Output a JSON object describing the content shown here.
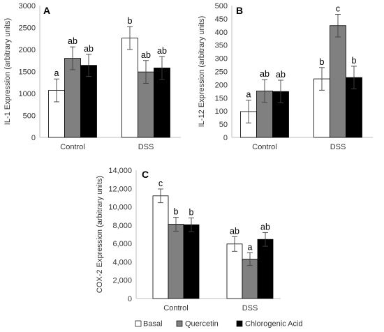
{
  "legend": [
    {
      "label": "Basal",
      "color": "#ffffff"
    },
    {
      "label": "Quercetin",
      "color": "#808080"
    },
    {
      "label": "Chlorogenic Acid",
      "color": "#000000"
    }
  ],
  "chart_data": [
    {
      "type": "bar",
      "panel": "A",
      "ylabel": "IL-1 Expression (arbitrary units)",
      "xlabel": "",
      "ylim": [
        0,
        3000
      ],
      "yticks": [
        0,
        500,
        1000,
        1500,
        2000,
        2500,
        3000
      ],
      "ytick_labels": [
        "0",
        "500",
        "1000",
        "1500",
        "2000",
        "2500",
        "3000"
      ],
      "categories": [
        "Control",
        "DSS"
      ],
      "series": [
        {
          "name": "Basal",
          "color": "#ffffff",
          "values": [
            1070,
            2260
          ],
          "errors": [
            260,
            260
          ],
          "letters": [
            "a",
            "b"
          ]
        },
        {
          "name": "Quercetin",
          "color": "#808080",
          "values": [
            1800,
            1490
          ],
          "errors": [
            260,
            260
          ],
          "letters": [
            "ab",
            "ab"
          ]
        },
        {
          "name": "Chlorogenic Acid",
          "color": "#000000",
          "values": [
            1640,
            1580
          ],
          "errors": [
            250,
            260
          ],
          "letters": [
            "ab",
            "ab"
          ]
        }
      ],
      "grid": false
    },
    {
      "type": "bar",
      "panel": "B",
      "ylabel": "IL-12 Expression (arbitrary units)",
      "xlabel": "",
      "ylim": [
        0,
        500
      ],
      "yticks": [
        0,
        50,
        100,
        150,
        200,
        250,
        300,
        350,
        400,
        450,
        500
      ],
      "ytick_labels": [
        "0",
        "50",
        "100",
        "150",
        "200",
        "250",
        "300",
        "350",
        "400",
        "450",
        "500"
      ],
      "categories": [
        "Control",
        "DSS"
      ],
      "series": [
        {
          "name": "Basal",
          "color": "#ffffff",
          "values": [
            98,
            222
          ],
          "errors": [
            43,
            43
          ],
          "letters": [
            "a",
            "b"
          ]
        },
        {
          "name": "Quercetin",
          "color": "#808080",
          "values": [
            176,
            424
          ],
          "errors": [
            43,
            43
          ],
          "letters": [
            "ab",
            "c"
          ]
        },
        {
          "name": "Chlorogenic Acid",
          "color": "#000000",
          "values": [
            174,
            227
          ],
          "errors": [
            43,
            43
          ],
          "letters": [
            "ab",
            "b"
          ]
        }
      ],
      "grid": false
    },
    {
      "type": "bar",
      "panel": "C",
      "ylabel": "COX-2 Expression (arbitrary units)",
      "xlabel": "",
      "ylim": [
        0,
        14000
      ],
      "yticks": [
        0,
        2000,
        4000,
        6000,
        8000,
        10000,
        12000,
        14000
      ],
      "ytick_labels": [
        "0",
        "2,000",
        "4,000",
        "6,000",
        "8,000",
        "10,000",
        "12,000",
        "14,000"
      ],
      "categories": [
        "Control",
        "DSS"
      ],
      "series": [
        {
          "name": "Basal",
          "color": "#ffffff",
          "values": [
            11200,
            5950
          ],
          "errors": [
            750,
            800
          ],
          "letters": [
            "c",
            "ab"
          ]
        },
        {
          "name": "Quercetin",
          "color": "#808080",
          "values": [
            8100,
            4300
          ],
          "errors": [
            750,
            700
          ],
          "letters": [
            "b",
            "a"
          ]
        },
        {
          "name": "Chlorogenic Acid",
          "color": "#000000",
          "values": [
            8050,
            6450
          ],
          "errors": [
            750,
            750
          ],
          "letters": [
            "b",
            "ab"
          ]
        }
      ],
      "grid": false
    }
  ]
}
